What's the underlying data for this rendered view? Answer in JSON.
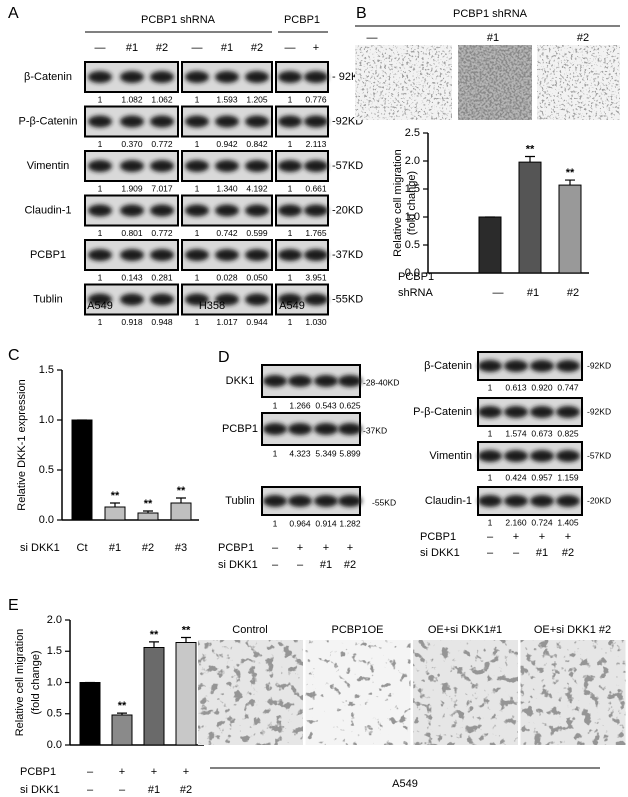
{
  "panelA": {
    "letter": "A",
    "header_groups": [
      "PCBP1 shRNA",
      "PCBP1"
    ],
    "columns": [
      "—",
      "#1",
      "#2",
      "—",
      "#1",
      "#2",
      "—",
      "+"
    ],
    "rows": [
      {
        "label": "β-Catenin",
        "size": "- 92KD",
        "quant": [
          "1",
          "1.082",
          "1.062",
          "1",
          "1.593",
          "1.205",
          "1",
          "0.776"
        ]
      },
      {
        "label": "P-β-Catenin",
        "size": "-92KD",
        "quant": [
          "1",
          "0.370",
          "0.772",
          "1",
          "0.942",
          "0.842",
          "1",
          "2.113"
        ]
      },
      {
        "label": "Vimentin",
        "size": "-57KD",
        "quant": [
          "1",
          "1.909",
          "7.017",
          "1",
          "1.340",
          "4.192",
          "1",
          "0.661"
        ]
      },
      {
        "label": "Claudin-1",
        "size": "-20KD",
        "quant": [
          "1",
          "0.801",
          "0.772",
          "1",
          "0.742",
          "0.599",
          "1",
          "1.765"
        ]
      },
      {
        "label": "PCBP1",
        "size": "-37KD",
        "quant": [
          "1",
          "0.143",
          "0.281",
          "1",
          "0.028",
          "0.050",
          "1",
          "3.951"
        ]
      },
      {
        "label": "Tublin",
        "size": "-55KD",
        "quant": [
          "1",
          "0.918",
          "0.948",
          "1",
          "1.017",
          "0.944",
          "1",
          "1.030"
        ]
      }
    ],
    "cell_lines": [
      "A549",
      "H358",
      "A549"
    ]
  },
  "panelB": {
    "letter": "B",
    "header": "PCBP1 shRNA",
    "columns": [
      "—",
      "#1",
      "#2"
    ]
  },
  "panelC": {
    "letter": "C"
  },
  "panelD": {
    "letter": "D",
    "left": [
      {
        "label": "DKK1",
        "size": "-28-40KD",
        "quant": [
          "1",
          "1.266",
          "0.543",
          "0.625"
        ]
      },
      {
        "label": "PCBP1",
        "size": "-37KD",
        "quant": [
          "1",
          "4.323",
          "5.349",
          "5.899"
        ]
      },
      {
        "label": "Tublin",
        "size": "-55KD",
        "quant": [
          "1",
          "0.964",
          "0.914",
          "1.282"
        ]
      }
    ],
    "right": [
      {
        "label": "β-Catenin",
        "size": "-92KD",
        "quant": [
          "1",
          "0.613",
          "0.920",
          "0.747"
        ]
      },
      {
        "label": "P-β-Catenin",
        "size": "-92KD",
        "quant": [
          "1",
          "1.574",
          "0.673",
          "0.825"
        ]
      },
      {
        "label": "Vimentin",
        "size": "-57KD",
        "quant": [
          "1",
          "0.424",
          "0.957",
          "1.159"
        ]
      },
      {
        "label": "Claudin-1",
        "size": "-20KD",
        "quant": [
          "1",
          "2.160",
          "0.724",
          "1.405"
        ]
      }
    ],
    "conditions": [
      {
        "label": "PCBP1",
        "values": [
          "–",
          "+",
          "+",
          "+"
        ]
      },
      {
        "label": "si DKK1",
        "values": [
          "–",
          "–",
          "#1",
          "#2"
        ]
      }
    ]
  },
  "panelE": {
    "letter": "E",
    "image_labels": [
      "Control",
      "PCBP1OE",
      "OE+si DKK1#1",
      "OE+si DKK1 #2"
    ],
    "cell_line": "A549"
  },
  "chart_data": [
    {
      "type": "bar",
      "ylabel": [
        "Relative cell migration",
        "(fold change)"
      ],
      "xlabel": [
        "PCBP1",
        "shRNA"
      ],
      "categories": [
        "—",
        "#1",
        "#2"
      ],
      "values": [
        1,
        1.98,
        1.57
      ],
      "errors": [
        0,
        0.1,
        0.09
      ],
      "colors": [
        "#2b2b2b",
        "#555555",
        "#999999"
      ],
      "annotations": [
        null,
        "**",
        "**"
      ],
      "ylim": [
        0,
        2.5
      ],
      "yticks": [
        {
          "value": 0,
          "label": "0.0"
        },
        {
          "value": 0.5,
          "label": "0.5"
        },
        {
          "value": 1,
          "label": "1.0"
        },
        {
          "value": 1.5,
          "label": "1.5"
        },
        {
          "value": 2,
          "label": "2.0"
        },
        {
          "value": 2.5,
          "label": "2.5"
        }
      ]
    },
    {
      "type": "bar",
      "ylabel": [
        "Relative DKK-1 expression"
      ],
      "xlabel": [
        "si DKK1"
      ],
      "categories": [
        "Ct",
        "#1",
        "#2",
        "#3"
      ],
      "values": [
        1,
        0.13,
        0.07,
        0.17
      ],
      "errors": [
        0,
        0.04,
        0.02,
        0.05
      ],
      "colors": [
        "#000000",
        "#c0c0c0",
        "#c0c0c0",
        "#c0c0c0"
      ],
      "annotations": [
        null,
        "**",
        "**",
        "**"
      ],
      "ylim": [
        0,
        1.5
      ],
      "yticks": [
        {
          "value": 0,
          "label": "0.0"
        },
        {
          "value": 0.5,
          "label": "0.5"
        },
        {
          "value": 1,
          "label": "1.0"
        },
        {
          "value": 1.5,
          "label": "1.5"
        }
      ]
    },
    {
      "type": "bar",
      "ylabel": [
        "Relative cell migration",
        "(fold change)"
      ],
      "conditions": [
        {
          "label": "PCBP1",
          "values": [
            "–",
            "+",
            "+",
            "+"
          ]
        },
        {
          "label": "si DKK1",
          "values": [
            "–",
            "–",
            "#1",
            "#2"
          ]
        }
      ],
      "values": [
        1,
        0.48,
        1.56,
        1.64
      ],
      "errors": [
        0,
        0.03,
        0.09,
        0.08
      ],
      "colors": [
        "#000000",
        "#8a8a8a",
        "#6a6a6a",
        "#c8c8c8"
      ],
      "annotations": [
        null,
        "**",
        "**",
        "**"
      ],
      "ylim": [
        0,
        2
      ],
      "yticks": [
        {
          "value": 0,
          "label": "0.0"
        },
        {
          "value": 0.5,
          "label": "0.5"
        },
        {
          "value": 1,
          "label": "1.0"
        },
        {
          "value": 1.5,
          "label": "1.5"
        },
        {
          "value": 2,
          "label": "2.0"
        }
      ]
    }
  ]
}
